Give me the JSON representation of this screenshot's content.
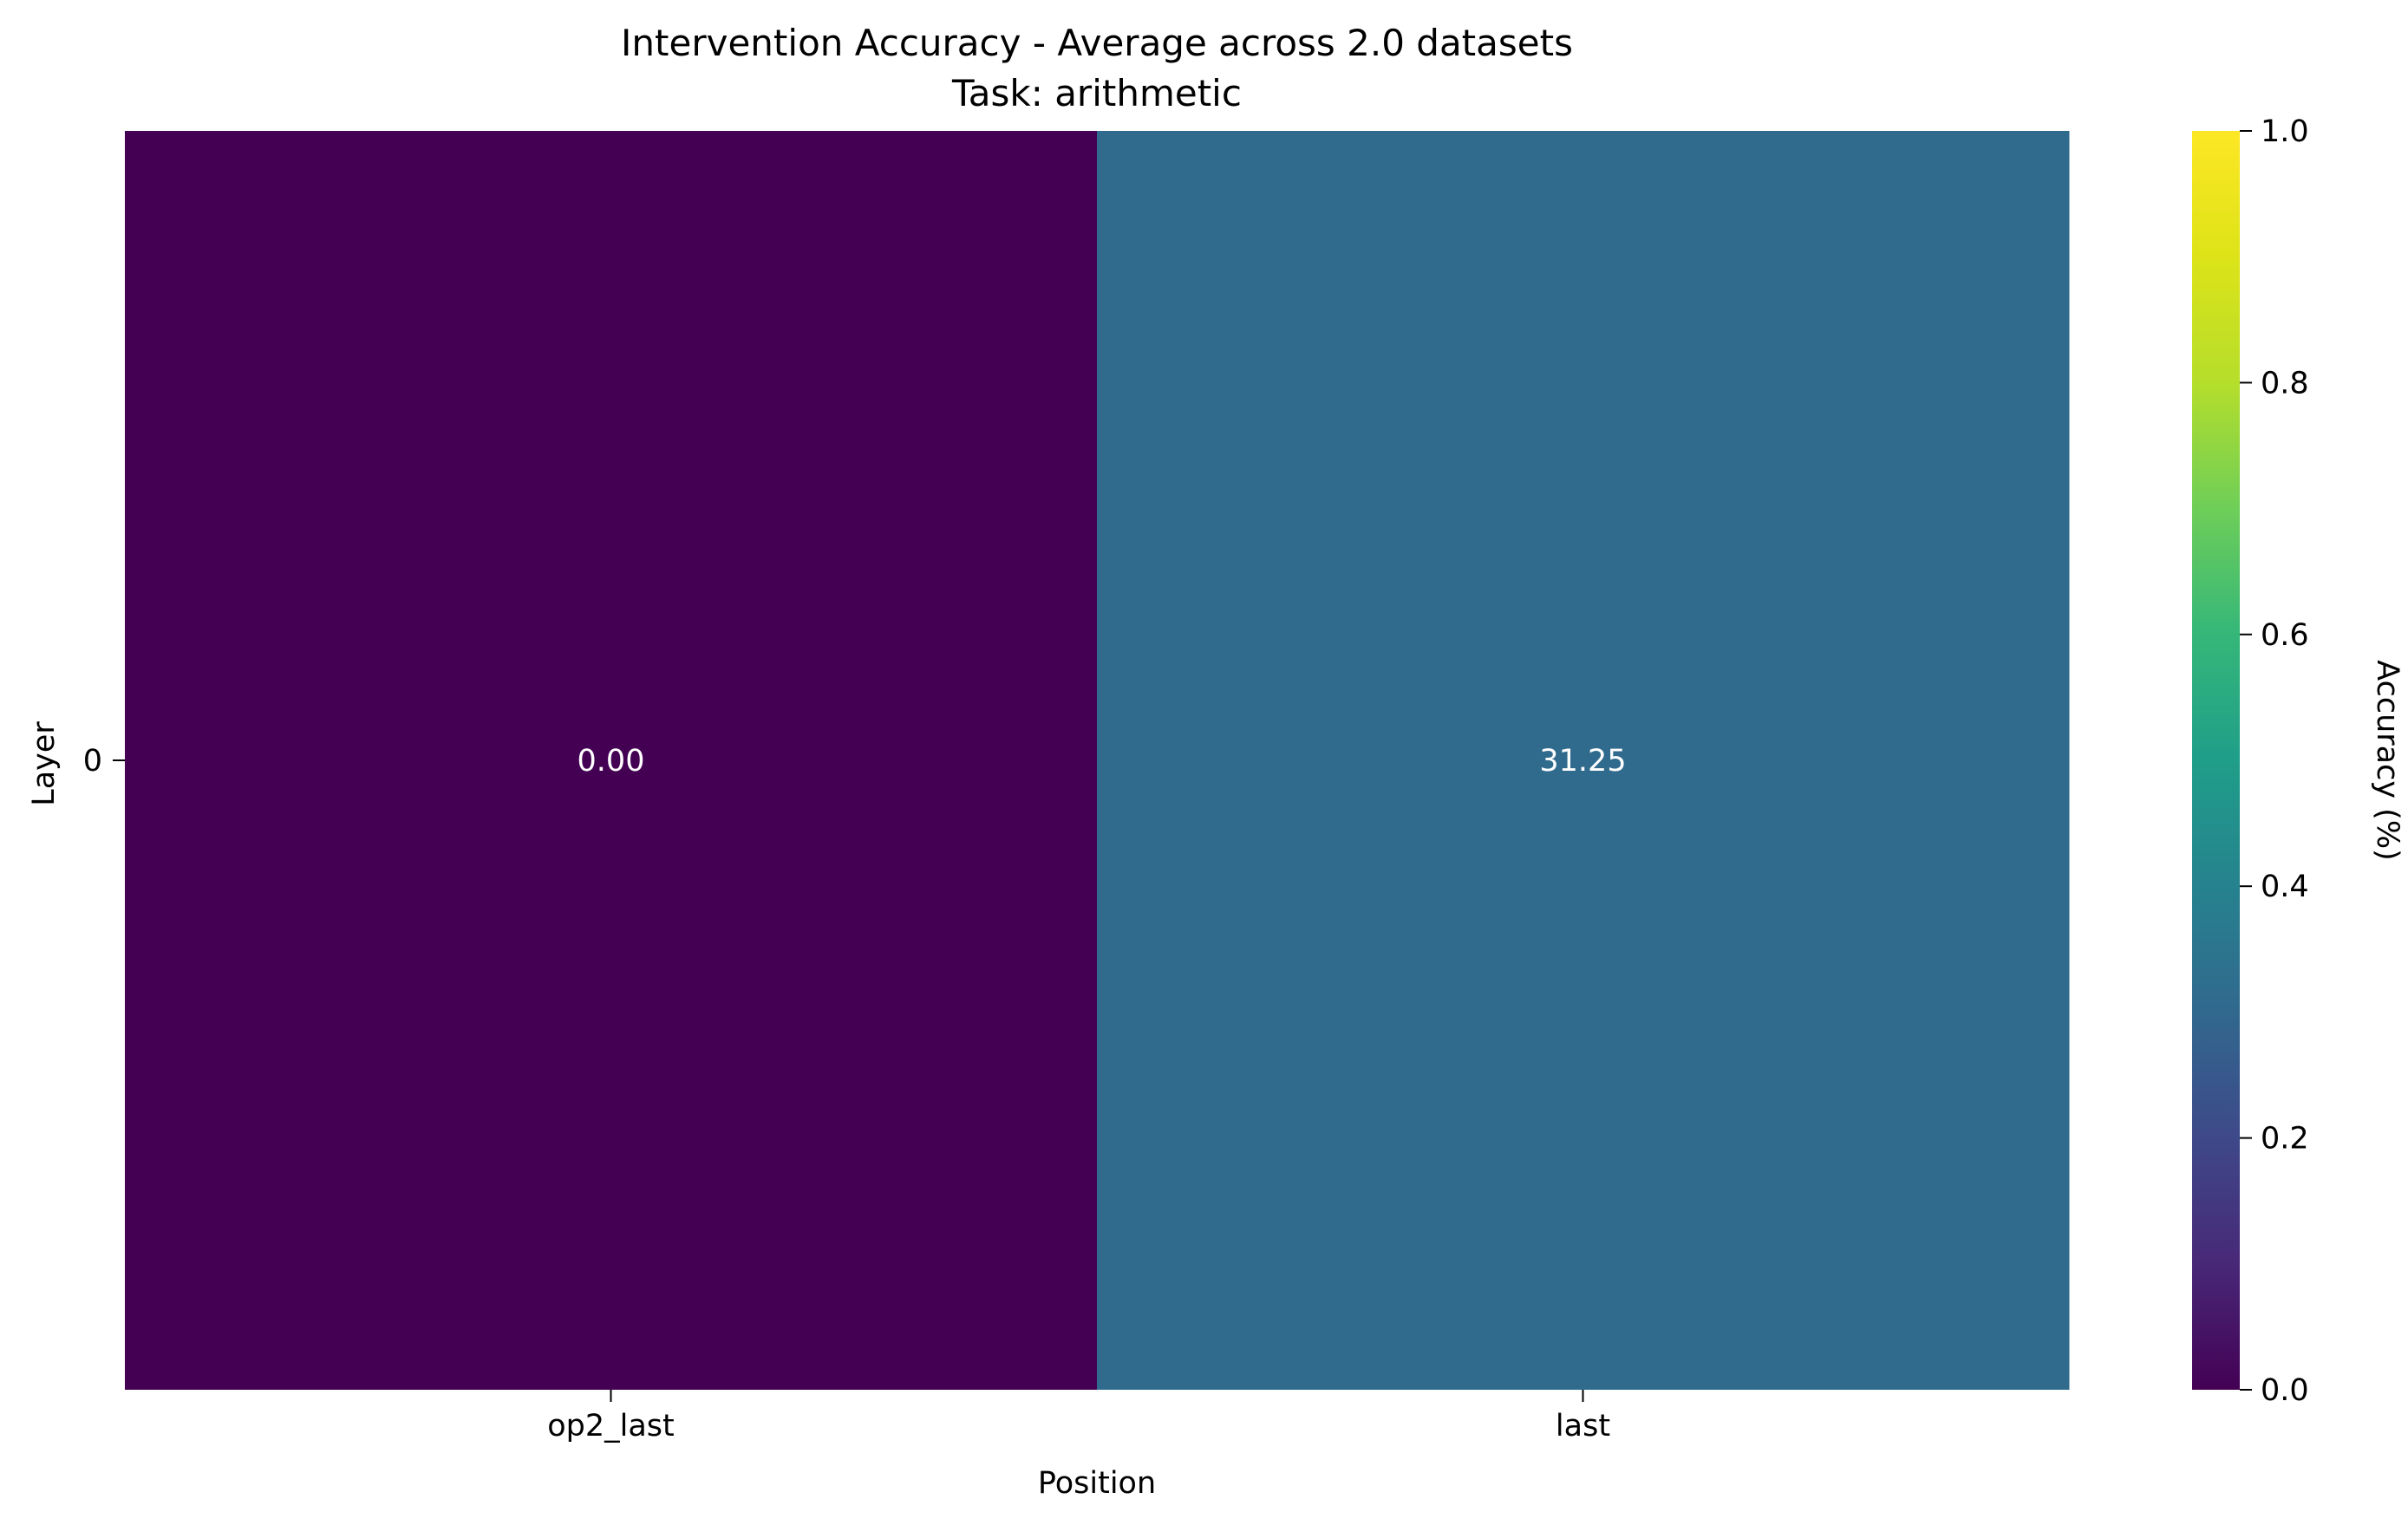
{
  "chart_data": {
    "type": "heatmap",
    "title": "Intervention Accuracy - Average across 2.0 datasets",
    "subtitle": "Task: arithmetic",
    "xlabel": "Position",
    "ylabel": "Layer",
    "x_categories": [
      "op2_last",
      "last"
    ],
    "y_categories": [
      "0"
    ],
    "values": [
      [
        0.0,
        0.3125
      ]
    ],
    "annotations": [
      [
        "0.00",
        "31.25"
      ]
    ],
    "colormap": "viridis",
    "colorbar": {
      "label": "Accuracy (%)",
      "range": [
        0.0,
        1.0
      ],
      "ticks": [
        "0.0",
        "0.2",
        "0.4",
        "0.6",
        "0.8",
        "1.0"
      ]
    }
  }
}
